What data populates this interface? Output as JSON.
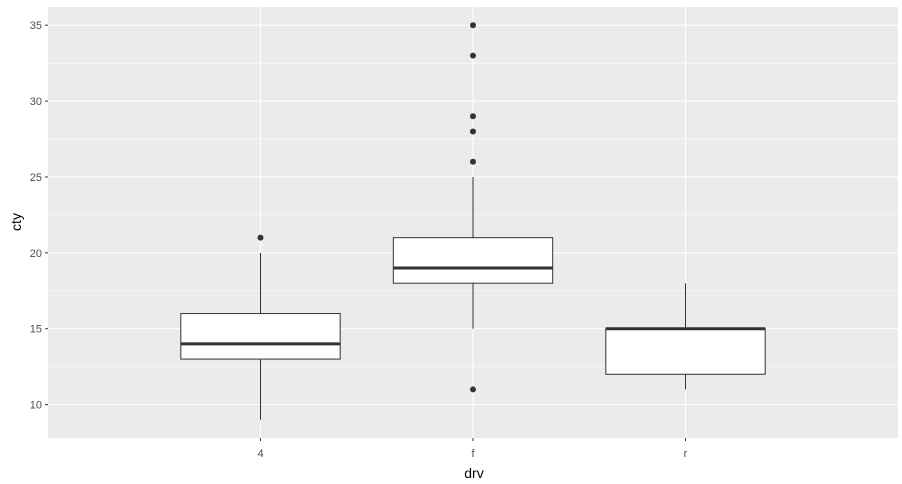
{
  "chart_data": {
    "type": "boxplot",
    "xlabel": "drv",
    "ylabel": "cty",
    "categories": [
      "4",
      "f",
      "r"
    ],
    "ylim": [
      7.8,
      36.2
    ],
    "y_ticks": [
      10,
      15,
      20,
      25,
      30,
      35
    ],
    "y_tick_labels": [
      "10",
      "15",
      "20",
      "25",
      "30",
      "35"
    ],
    "grid": true,
    "boxes": [
      {
        "category": "4",
        "lower_whisker": 9,
        "q1": 13,
        "median": 14,
        "q3": 16,
        "upper_whisker": 20,
        "outliers": [
          21
        ]
      },
      {
        "category": "f",
        "lower_whisker": 15,
        "q1": 18,
        "median": 19,
        "q3": 21,
        "upper_whisker": 25,
        "outliers": [
          11,
          26,
          28,
          29,
          33,
          35
        ]
      },
      {
        "category": "r",
        "lower_whisker": 11,
        "q1": 12,
        "median": 15,
        "q3": 15,
        "upper_whisker": 18,
        "outliers": []
      }
    ],
    "colors": {
      "panel": "#EBEBEB",
      "grid_major": "#FFFFFF",
      "box_fill": "#FFFFFF",
      "box_line": "#333333",
      "tick_text": "#4D4D4D",
      "axis_title": "#000000"
    }
  }
}
